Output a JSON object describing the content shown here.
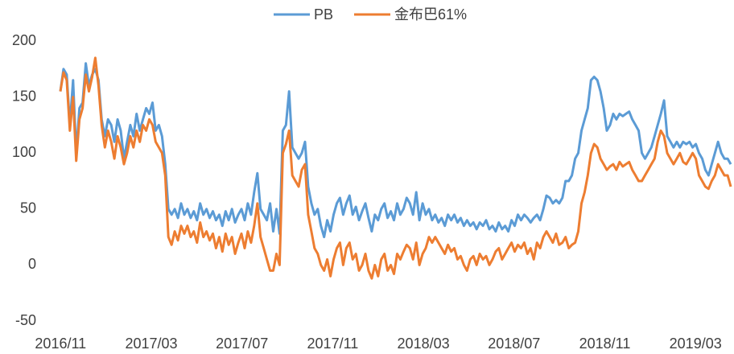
{
  "chart_data": {
    "type": "line",
    "xticks": [
      "2016/11",
      "2017/03",
      "2017/07",
      "2017/11",
      "2018/03",
      "2018/07",
      "2018/11",
      "2019/03"
    ],
    "ylim": [
      -50,
      200
    ],
    "yticks": [
      -50,
      0,
      50,
      100,
      150,
      200
    ],
    "grid": false,
    "legend": "top",
    "series": [
      {
        "name": "PB",
        "color": "#5B9BD5",
        "values": [
          155,
          175,
          170,
          125,
          165,
          100,
          140,
          145,
          180,
          160,
          170,
          175,
          165,
          130,
          115,
          130,
          125,
          110,
          130,
          120,
          95,
          110,
          125,
          115,
          135,
          120,
          130,
          140,
          135,
          145,
          120,
          125,
          115,
          90,
          50,
          45,
          50,
          42,
          55,
          45,
          50,
          42,
          48,
          40,
          55,
          45,
          50,
          42,
          48,
          40,
          45,
          35,
          48,
          40,
          50,
          38,
          45,
          50,
          40,
          55,
          45,
          65,
          82,
          50,
          45,
          40,
          55,
          30,
          50,
          28,
          120,
          125,
          155,
          105,
          100,
          95,
          100,
          110,
          70,
          55,
          45,
          50,
          35,
          25,
          40,
          30,
          45,
          55,
          60,
          45,
          55,
          62,
          45,
          52,
          40,
          48,
          55,
          42,
          30,
          45,
          40,
          50,
          55,
          42,
          48,
          40,
          55,
          45,
          50,
          60,
          55,
          45,
          65,
          40,
          55,
          45,
          50,
          40,
          45,
          38,
          42,
          35,
          45,
          40,
          45,
          38,
          42,
          35,
          40,
          35,
          38,
          32,
          38,
          35,
          40,
          32,
          35,
          30,
          38,
          32,
          35,
          30,
          40,
          35,
          45,
          40,
          45,
          42,
          38,
          42,
          45,
          40,
          50,
          62,
          60,
          55,
          58,
          55,
          60,
          75,
          75,
          80,
          95,
          100,
          120,
          130,
          140,
          165,
          168,
          165,
          155,
          140,
          120,
          125,
          135,
          130,
          135,
          133,
          135,
          137,
          130,
          125,
          120,
          100,
          95,
          100,
          105,
          115,
          125,
          135,
          147,
          115,
          110,
          105,
          110,
          105,
          110,
          108,
          110,
          105,
          108,
          100,
          95,
          85,
          80,
          90,
          100,
          110,
          100,
          95,
          95,
          90
        ]
      },
      {
        "name": "金布巴61%",
        "color": "#ED7D31",
        "values": [
          155,
          172,
          165,
          120,
          150,
          93,
          130,
          140,
          170,
          155,
          168,
          185,
          160,
          125,
          105,
          120,
          110,
          95,
          115,
          105,
          90,
          100,
          115,
          105,
          120,
          110,
          125,
          120,
          130,
          125,
          110,
          105,
          100,
          80,
          25,
          18,
          30,
          22,
          35,
          28,
          35,
          25,
          30,
          20,
          38,
          25,
          30,
          22,
          28,
          15,
          25,
          12,
          28,
          18,
          25,
          10,
          20,
          28,
          15,
          30,
          20,
          35,
          55,
          25,
          15,
          5,
          -5,
          -5,
          10,
          0,
          100,
          108,
          120,
          80,
          75,
          70,
          85,
          90,
          45,
          30,
          15,
          10,
          0,
          -5,
          5,
          -10,
          5,
          15,
          20,
          0,
          15,
          20,
          5,
          10,
          -5,
          0,
          10,
          -5,
          -12,
          0,
          -10,
          5,
          10,
          -5,
          0,
          -8,
          10,
          5,
          12,
          18,
          15,
          5,
          20,
          0,
          10,
          15,
          25,
          20,
          25,
          20,
          15,
          10,
          18,
          12,
          15,
          5,
          8,
          0,
          -5,
          5,
          8,
          0,
          10,
          5,
          8,
          0,
          5,
          12,
          15,
          5,
          10,
          15,
          20,
          12,
          18,
          15,
          20,
          10,
          15,
          5,
          20,
          15,
          25,
          30,
          25,
          20,
          28,
          18,
          20,
          25,
          15,
          18,
          20,
          30,
          55,
          65,
          80,
          100,
          108,
          105,
          95,
          90,
          85,
          88,
          90,
          85,
          92,
          88,
          90,
          92,
          85,
          80,
          75,
          75,
          80,
          85,
          90,
          95,
          110,
          120,
          115,
          100,
          95,
          90,
          95,
          100,
          92,
          90,
          95,
          100,
          95,
          80,
          75,
          70,
          68,
          75,
          80,
          90,
          85,
          80,
          80,
          70
        ]
      }
    ]
  }
}
